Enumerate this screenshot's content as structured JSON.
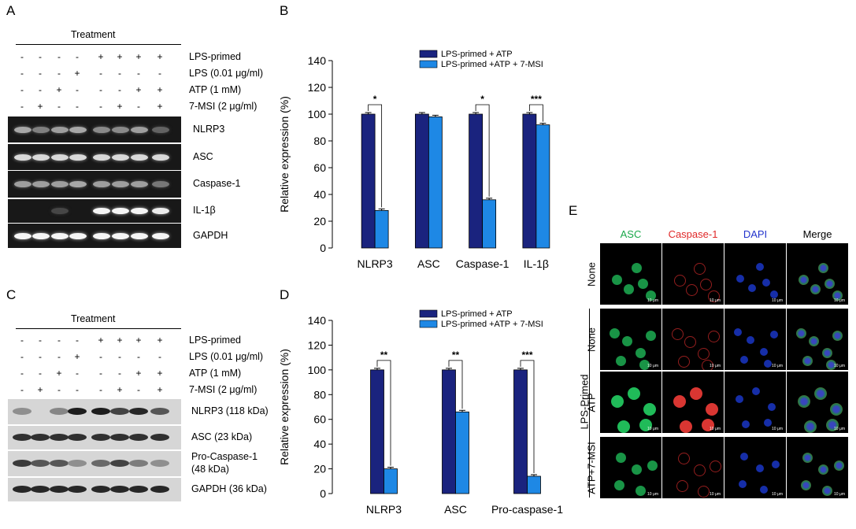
{
  "panels": {
    "A": {
      "label": "A",
      "treatment": "Treatment",
      "rows": [
        {
          "name": "LPS-primed",
          "signs": [
            "-",
            "-",
            "-",
            "-",
            "+",
            "+",
            "+",
            "+"
          ]
        },
        {
          "name": "LPS (0.01 μg/ml)",
          "signs": [
            "-",
            "-",
            "-",
            "+",
            "-",
            "-",
            "-",
            "-"
          ]
        },
        {
          "name": "ATP (1 mM)",
          "signs": [
            "-",
            "-",
            "+",
            "-",
            "-",
            "-",
            "+",
            "+"
          ]
        },
        {
          "name": "7-MSI (2 μg/ml)",
          "signs": [
            "-",
            "+",
            "-",
            "-",
            "-",
            "+",
            "-",
            "+"
          ]
        }
      ],
      "gels": [
        "NLRP3",
        "ASC",
        "Caspase-1",
        "IL-1β",
        "GAPDH"
      ]
    },
    "C": {
      "label": "C",
      "treatment": "Treatment",
      "rows": [
        {
          "name": "LPS-primed",
          "signs": [
            "-",
            "-",
            "-",
            "-",
            "+",
            "+",
            "+",
            "+"
          ]
        },
        {
          "name": "LPS (0.01 μg/ml)",
          "signs": [
            "-",
            "-",
            "-",
            "+",
            "-",
            "-",
            "-",
            "-"
          ]
        },
        {
          "name": "ATP (1 mM)",
          "signs": [
            "-",
            "-",
            "+",
            "-",
            "-",
            "-",
            "+",
            "+"
          ]
        },
        {
          "name": "7-MSI (2 μg/ml)",
          "signs": [
            "-",
            "+",
            "-",
            "-",
            "-",
            "+",
            "-",
            "+"
          ]
        }
      ],
      "blots": [
        "NLRP3 (118 kDa)",
        "ASC (23 kDa)",
        "Pro-Caspase-1\n(48 kDa)",
        "GAPDH (36 kDa)"
      ]
    },
    "E": {
      "label": "E",
      "columns": [
        "ASC",
        "Caspase-1",
        "DAPI",
        "Merge"
      ],
      "column_colors": [
        "#1aa84a",
        "#e02828",
        "#2233cc",
        "#000000"
      ],
      "rows": [
        "None",
        "None",
        "ATP",
        "ATP+7-MSI"
      ],
      "group_label": "LPS-Primed",
      "scale_bar": "10 μm"
    }
  },
  "chart_data": [
    {
      "label": "B",
      "type": "bar",
      "categories": [
        "NLRP3",
        "ASC",
        "Caspase-1",
        "IL-1β"
      ],
      "series": [
        {
          "name": "LPS-primed + ATP",
          "values": [
            100,
            100,
            100,
            100
          ],
          "color": "#1a237e"
        },
        {
          "name": "LPS-primed +ATP + 7-MSI",
          "values": [
            28,
            98,
            36,
            92
          ],
          "color": "#1e88e5"
        }
      ],
      "significance": [
        "*",
        "",
        "*",
        "***"
      ],
      "ylabel": "Relative expression (%)",
      "ylim": [
        0,
        140
      ],
      "yticks": [
        0,
        20,
        40,
        60,
        80,
        100,
        120,
        140
      ],
      "legend": "top-right"
    },
    {
      "label": "D",
      "type": "bar",
      "categories": [
        "NLRP3",
        "ASC",
        "Pro-caspase-1"
      ],
      "series": [
        {
          "name": "LPS-primed + ATP",
          "values": [
            100,
            100,
            100
          ],
          "color": "#1a237e"
        },
        {
          "name": "LPS-primed +ATP + 7-MSI",
          "values": [
            20,
            66,
            14
          ],
          "color": "#1e88e5"
        }
      ],
      "significance": [
        "**",
        "**",
        "***"
      ],
      "ylabel": "Relative expression (%)",
      "ylim": [
        0,
        140
      ],
      "yticks": [
        0,
        20,
        40,
        60,
        80,
        100,
        120,
        140
      ],
      "legend": "top-right"
    }
  ]
}
